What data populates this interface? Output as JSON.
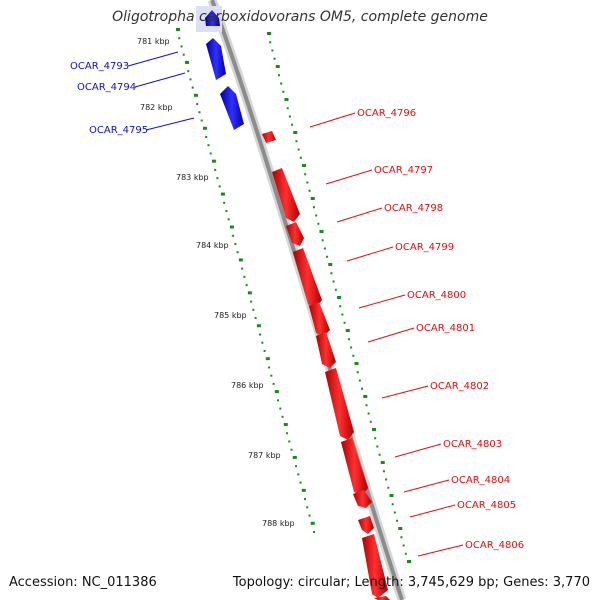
{
  "header": {
    "title": "Oligotropha carboxidovorans OM5, complete genome"
  },
  "footer": {
    "accession": "Accession: NC_011386",
    "summary": "Topology: circular; Length: 3,745,629 bp; Genes: 3,770"
  },
  "colors": {
    "backbone": "#8c8c8c",
    "reverse_strand": "#1a1aee",
    "forward_strand": "#ee1111",
    "tick_marks": "#1a8a1a",
    "label_reverse": "#1010cc",
    "label_forward": "#dd1010"
  },
  "ticks": [
    "781 kbp",
    "782 kbp",
    "783 kbp",
    "784 kbp",
    "785 kbp",
    "786 kbp",
    "787 kbp",
    "788 kbp"
  ],
  "genes_reverse": [
    "OCAR_4793",
    "OCAR_4794",
    "OCAR_4795"
  ],
  "genes_forward": [
    "OCAR_4796",
    "OCAR_4797",
    "OCAR_4798",
    "OCAR_4799",
    "OCAR_4800",
    "OCAR_4801",
    "OCAR_4802",
    "OCAR_4803",
    "OCAR_4804",
    "OCAR_4805",
    "OCAR_4806"
  ]
}
